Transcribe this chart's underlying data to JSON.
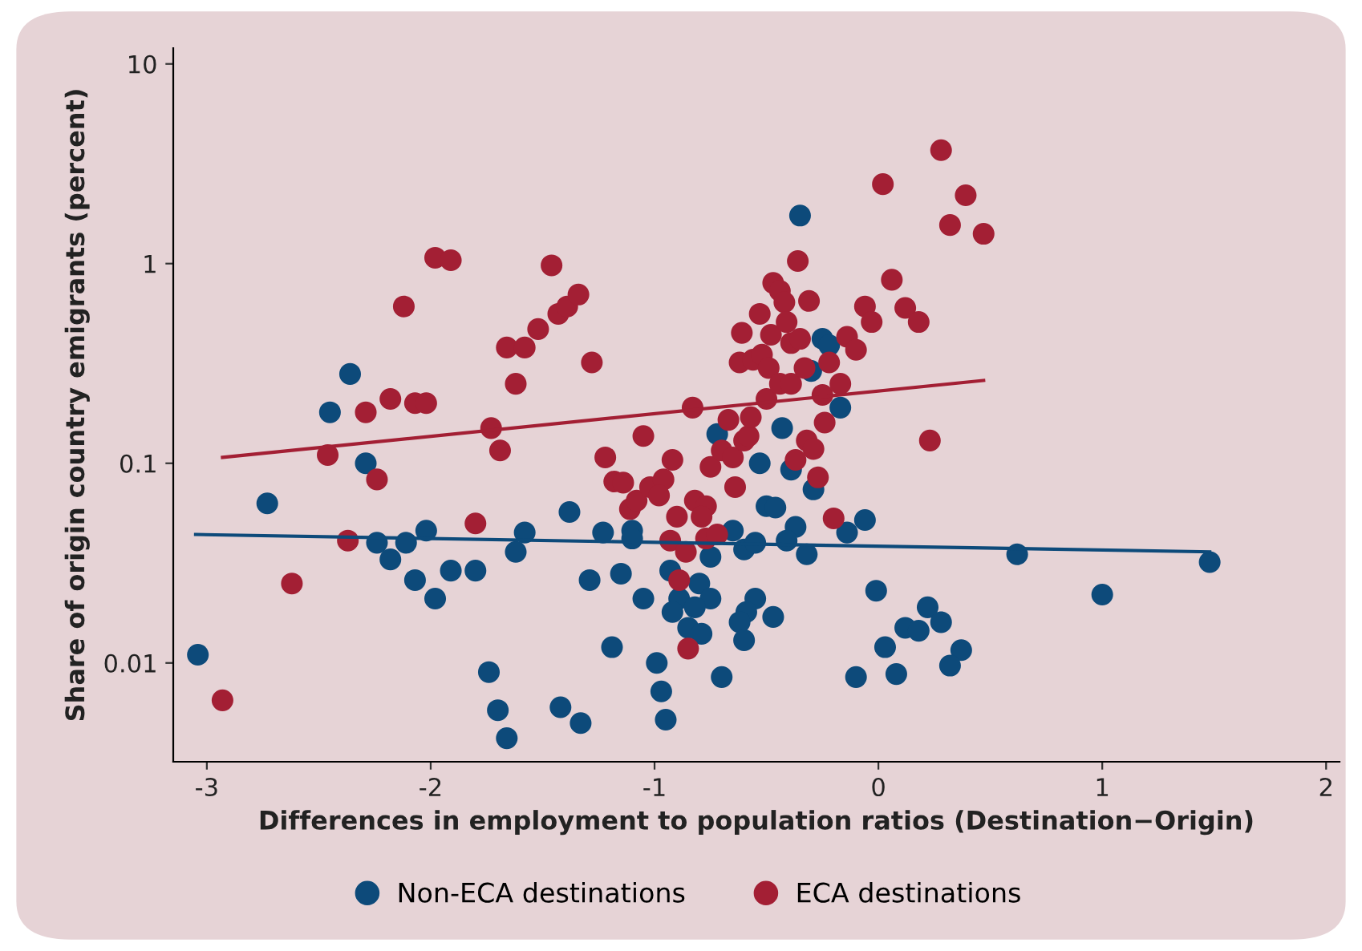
{
  "chart_data": {
    "type": "scatter",
    "xlabel": "Differences in employment to population ratios (Destination−Origin)",
    "ylabel": "Share of origin country emigrants (percent)",
    "log": "y",
    "xlim": [
      -3.15,
      2.06
    ],
    "ylim": [
      0.0032,
      12
    ],
    "xticks": [
      -3,
      -2,
      -1,
      0,
      1,
      2
    ],
    "yticks": [
      0.01,
      0.1,
      1,
      10
    ],
    "grid": false,
    "legend": "bottom",
    "marker": "circle",
    "series": [
      {
        "name": "Non-ECA destinations",
        "color": "#0d4a7a",
        "x": [
          -3.04,
          -2.73,
          -2.45,
          -2.36,
          -2.29,
          -2.24,
          -2.18,
          -2.11,
          -2.07,
          -2.02,
          -1.98,
          -1.91,
          -1.8,
          -1.74,
          -1.7,
          -1.66,
          -1.62,
          -1.58,
          -1.42,
          -1.38,
          -1.33,
          -1.29,
          -1.23,
          -1.19,
          -1.15,
          -1.1,
          -1.05,
          -0.99,
          -0.97,
          -0.95,
          -0.35,
          -0.25,
          -0.22,
          -0.3,
          -0.17,
          -0.43,
          -0.72,
          -0.53,
          -0.39,
          -0.29,
          -0.5,
          -0.46,
          -0.65,
          -0.6,
          -0.55,
          -0.37,
          -0.41,
          -0.75,
          -0.32,
          -0.14,
          -0.06,
          -1.1,
          -0.93,
          -0.8,
          -0.75,
          -0.89,
          -0.92,
          -0.82,
          -0.85,
          -0.79,
          -0.55,
          -0.59,
          -0.62,
          -0.47,
          -0.6,
          -0.7,
          -0.01,
          0.03,
          -0.1,
          0.08,
          0.12,
          0.18,
          0.22,
          0.28,
          0.37,
          0.32,
          0.62,
          1.0,
          1.48
        ],
        "values": [
          0.011,
          0.063,
          0.18,
          0.28,
          0.1,
          0.04,
          0.033,
          0.04,
          0.026,
          0.046,
          0.021,
          0.029,
          0.029,
          0.009,
          0.0058,
          0.0042,
          0.036,
          0.045,
          0.006,
          0.057,
          0.005,
          0.026,
          0.045,
          0.012,
          0.028,
          0.046,
          0.021,
          0.01,
          0.0072,
          0.0052,
          1.74,
          0.42,
          0.39,
          0.29,
          0.19,
          0.15,
          0.14,
          0.1,
          0.093,
          0.074,
          0.061,
          0.06,
          0.046,
          0.037,
          0.04,
          0.048,
          0.041,
          0.034,
          0.035,
          0.045,
          0.052,
          0.042,
          0.029,
          0.025,
          0.021,
          0.021,
          0.018,
          0.019,
          0.015,
          0.014,
          0.021,
          0.018,
          0.016,
          0.017,
          0.013,
          0.0085,
          0.023,
          0.012,
          0.0085,
          0.0088,
          0.015,
          0.0145,
          0.019,
          0.016,
          0.0116,
          0.0097,
          0.035,
          0.022,
          0.032
        ]
      },
      {
        "name": "ECA destinations",
        "color": "#a31f34",
        "x": [
          -2.93,
          -2.62,
          -2.46,
          -2.37,
          -2.24,
          -2.29,
          -2.18,
          -2.07,
          -2.02,
          -2.12,
          -1.98,
          -1.91,
          -1.8,
          -1.73,
          -1.69,
          -1.66,
          -1.58,
          -1.62,
          -1.52,
          -1.46,
          -1.43,
          -1.39,
          -1.34,
          -1.28,
          -1.22,
          -1.18,
          -1.14,
          -1.11,
          -1.08,
          -1.05,
          -1.02,
          -0.96,
          -0.92,
          -0.98,
          -0.9,
          -0.93,
          -0.86,
          -0.89,
          -0.85,
          -0.82,
          -0.77,
          -0.79,
          -0.77,
          -0.72,
          -0.83,
          -0.75,
          -0.7,
          -0.65,
          -0.64,
          -0.67,
          -0.6,
          -0.58,
          -0.57,
          -0.61,
          -0.62,
          -0.56,
          -0.53,
          -0.52,
          -0.48,
          -0.49,
          -0.47,
          -0.44,
          -0.42,
          -0.41,
          -0.5,
          -0.44,
          -0.39,
          -0.39,
          -0.35,
          -0.36,
          -0.31,
          -0.33,
          -0.25,
          -0.24,
          -0.22,
          -0.17,
          -0.14,
          -0.1,
          -0.32,
          -0.29,
          -0.37,
          -0.27,
          -0.2,
          -0.06,
          -0.03,
          0.06,
          0.12,
          0.18,
          0.02,
          0.28,
          0.39,
          0.32,
          0.47,
          0.23
        ],
        "values": [
          0.0065,
          0.025,
          0.11,
          0.041,
          0.083,
          0.18,
          0.21,
          0.2,
          0.2,
          0.61,
          1.07,
          1.04,
          0.05,
          0.15,
          0.116,
          0.38,
          0.38,
          0.25,
          0.47,
          0.98,
          0.56,
          0.61,
          0.7,
          0.32,
          0.107,
          0.081,
          0.08,
          0.059,
          0.065,
          0.137,
          0.076,
          0.083,
          0.104,
          0.069,
          0.054,
          0.041,
          0.036,
          0.026,
          0.0118,
          0.065,
          0.061,
          0.054,
          0.042,
          0.044,
          0.19,
          0.096,
          0.116,
          0.107,
          0.076,
          0.165,
          0.13,
          0.137,
          0.17,
          0.45,
          0.32,
          0.33,
          0.56,
          0.35,
          0.44,
          0.3,
          0.8,
          0.73,
          0.64,
          0.51,
          0.21,
          0.25,
          0.25,
          0.4,
          0.42,
          1.03,
          0.65,
          0.3,
          0.22,
          0.16,
          0.32,
          0.25,
          0.43,
          0.37,
          0.13,
          0.118,
          0.104,
          0.085,
          0.053,
          0.61,
          0.51,
          0.83,
          0.6,
          0.51,
          2.5,
          3.7,
          2.2,
          1.56,
          1.41,
          0.13
        ]
      },
      {
        "color": "#a31f34",
        "type": "line",
        "marker": "none",
        "x": [
          -2.93,
          0.47
        ],
        "values": [
          0.107,
          0.26
        ]
      },
      {
        "color": "#0d4a7a",
        "type": "line",
        "marker": "none",
        "x": [
          -3.05,
          1.48
        ],
        "values": [
          0.044,
          0.036
        ]
      }
    ]
  }
}
